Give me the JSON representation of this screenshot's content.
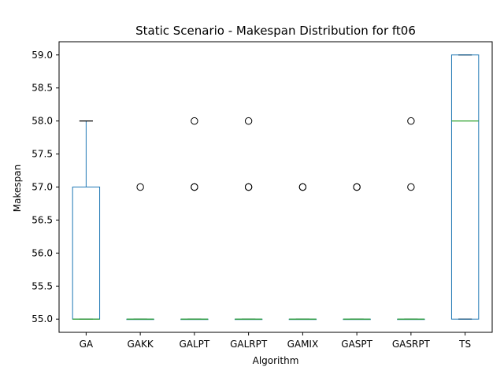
{
  "chart_data": {
    "type": "box",
    "title": "Static Scenario - Makespan Distribution for ft06",
    "xlabel": "Algorithm",
    "ylabel": "Makespan",
    "ylim": [
      54.8,
      59.2
    ],
    "yticks": [
      "55.0",
      "55.5",
      "56.0",
      "56.5",
      "57.0",
      "57.5",
      "58.0",
      "58.5",
      "59.0"
    ],
    "grid": false,
    "colors": {
      "box": "#1f77b4",
      "median": "#2ca02c",
      "whisker": "#1f77b4",
      "cap": "#000000",
      "flier": "#000000"
    },
    "categories": [
      "GA",
      "GAKK",
      "GALPT",
      "GALRPT",
      "GAMIX",
      "GASPT",
      "GASRPT",
      "TS"
    ],
    "boxes": [
      {
        "label": "GA",
        "whislo": 55,
        "q1": 55,
        "median": 55,
        "q3": 57,
        "whishi": 58,
        "fliers": []
      },
      {
        "label": "GAKK",
        "whislo": 55,
        "q1": 55,
        "median": 55,
        "q3": 55,
        "whishi": 55,
        "fliers": [
          57
        ]
      },
      {
        "label": "GALPT",
        "whislo": 55,
        "q1": 55,
        "median": 55,
        "q3": 55,
        "whishi": 55,
        "fliers": [
          57,
          57,
          58
        ]
      },
      {
        "label": "GALRPT",
        "whislo": 55,
        "q1": 55,
        "median": 55,
        "q3": 55,
        "whishi": 55,
        "fliers": [
          57,
          57,
          58
        ]
      },
      {
        "label": "GAMIX",
        "whislo": 55,
        "q1": 55,
        "median": 55,
        "q3": 55,
        "whishi": 55,
        "fliers": [
          57,
          57
        ]
      },
      {
        "label": "GASPT",
        "whislo": 55,
        "q1": 55,
        "median": 55,
        "q3": 55,
        "whishi": 55,
        "fliers": [
          57,
          57
        ]
      },
      {
        "label": "GASRPT",
        "whislo": 55,
        "q1": 55,
        "median": 55,
        "q3": 55,
        "whishi": 55,
        "fliers": [
          57,
          58
        ]
      },
      {
        "label": "TS",
        "whislo": 55,
        "q1": 55,
        "median": 58,
        "q3": 59,
        "whishi": 59,
        "fliers": []
      }
    ]
  }
}
